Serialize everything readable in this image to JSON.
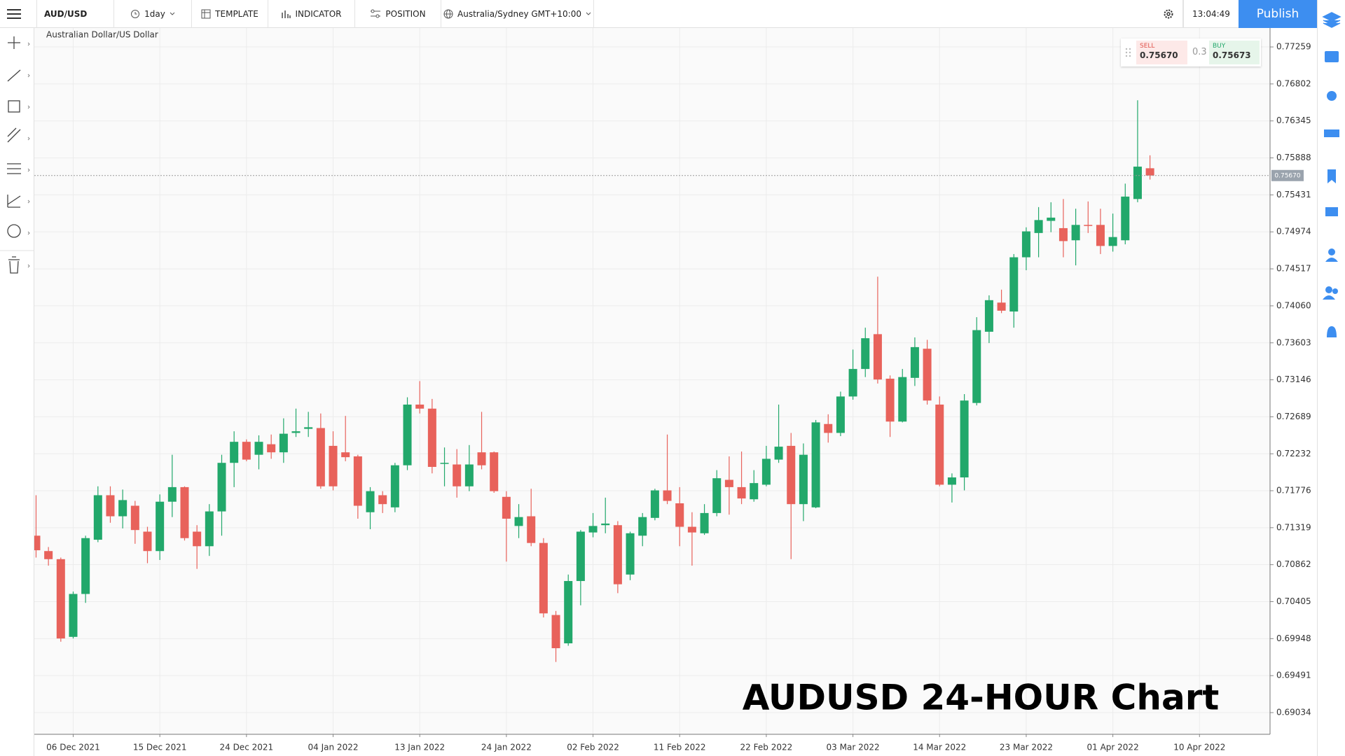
{
  "toolbar": {
    "symbol": "AUD/USD",
    "interval": "1day",
    "template": "TEMPLATE",
    "indicator": "INDICATOR",
    "position": "POSITION",
    "timezone": "Australia/Sydney GMT+10:00",
    "time": "13:04:49",
    "publish": "Publish"
  },
  "quote": {
    "sell_label": "SELL",
    "sell": "0.75670",
    "spread": "0.3",
    "buy_label": "BUY",
    "buy": "0.75673"
  },
  "chart_data": {
    "type": "candlestick",
    "subtitle": "Australian Dollar/US Dollar",
    "annotation": "AUDUSD 24-HOUR Chart",
    "open": [
      0.7122,
      0.7103,
      0.7093,
      0.6997,
      0.705,
      0.7117,
      0.7172,
      0.7146,
      0.7159,
      0.7127,
      0.7103,
      0.7164,
      0.7182,
      0.7127,
      0.7109,
      0.7152,
      0.7212,
      0.7238,
      0.7222,
      0.7235,
      0.7225,
      0.7249,
      0.7254,
      0.7255,
      0.7233,
      0.7225,
      0.722,
      0.7151,
      0.7172,
      0.7157,
      0.7209,
      0.7284,
      0.7279,
      0.7211,
      0.721,
      0.7183,
      0.7225,
      0.7225,
      0.717,
      0.7134,
      0.7146,
      0.7113,
      0.7024,
      0.6989,
      0.7066,
      0.7126,
      0.7135,
      0.7135,
      0.7074,
      0.7122,
      0.7144,
      0.7178,
      0.7162,
      0.7133,
      0.7125,
      0.715,
      0.7191,
      0.7182,
      0.7167,
      0.7185,
      0.7216,
      0.7233,
      0.7161,
      0.7157,
      0.726,
      0.7249,
      0.7294,
      0.7328,
      0.7371,
      0.7316,
      0.7263,
      0.7317,
      0.7353,
      0.7284,
      0.7185,
      0.7194,
      0.7286,
      0.7374,
      0.741,
      0.7399,
      0.7466,
      0.7496,
      0.7511,
      0.7502,
      0.7487,
      0.7506,
      0.7506,
      0.748,
      0.7487,
      0.7538,
      0.7576
    ],
    "high": [
      0.7172,
      0.7108,
      0.7095,
      0.7053,
      0.7122,
      0.7183,
      0.7183,
      0.7179,
      0.7165,
      0.7133,
      0.7173,
      0.7222,
      0.7183,
      0.7135,
      0.7161,
      0.7222,
      0.7251,
      0.7241,
      0.7246,
      0.7247,
      0.7267,
      0.7279,
      0.7275,
      0.7273,
      0.7251,
      0.727,
      0.7222,
      0.7182,
      0.7177,
      0.7212,
      0.7293,
      0.7313,
      0.7291,
      0.7231,
      0.7229,
      0.7234,
      0.7275,
      0.7226,
      0.7177,
      0.7161,
      0.718,
      0.7119,
      0.7029,
      0.7074,
      0.7129,
      0.715,
      0.7169,
      0.714,
      0.7127,
      0.715,
      0.718,
      0.7247,
      0.7182,
      0.7151,
      0.7161,
      0.7203,
      0.722,
      0.7226,
      0.7203,
      0.7233,
      0.7284,
      0.7249,
      0.7236,
      0.7265,
      0.7272,
      0.73,
      0.7352,
      0.7379,
      0.7442,
      0.732,
      0.7328,
      0.7367,
      0.7364,
      0.7294,
      0.7199,
      0.7297,
      0.7392,
      0.7419,
      0.7426,
      0.747,
      0.7503,
      0.7528,
      0.7534,
      0.7538,
      0.7526,
      0.7535,
      0.7526,
      0.752,
      0.7557,
      0.766,
      0.7592
    ],
    "low": [
      0.7095,
      0.7085,
      0.6991,
      0.6995,
      0.7039,
      0.7114,
      0.7138,
      0.7131,
      0.7112,
      0.7088,
      0.7092,
      0.7145,
      0.7116,
      0.7081,
      0.7097,
      0.7122,
      0.7182,
      0.7214,
      0.7204,
      0.7217,
      0.7212,
      0.7244,
      0.7244,
      0.718,
      0.7178,
      0.7214,
      0.7143,
      0.713,
      0.715,
      0.7151,
      0.7203,
      0.7273,
      0.7199,
      0.7183,
      0.7169,
      0.7177,
      0.7204,
      0.7175,
      0.709,
      0.7119,
      0.7109,
      0.7021,
      0.6966,
      0.6986,
      0.7036,
      0.712,
      0.7125,
      0.7051,
      0.7067,
      0.7109,
      0.7141,
      0.7161,
      0.7109,
      0.7085,
      0.7123,
      0.7146,
      0.7148,
      0.7161,
      0.7164,
      0.7183,
      0.7212,
      0.7093,
      0.714,
      0.7156,
      0.7237,
      0.7245,
      0.729,
      0.7318,
      0.731,
      0.7244,
      0.7262,
      0.7307,
      0.7284,
      0.7183,
      0.7163,
      0.7178,
      0.7283,
      0.736,
      0.7397,
      0.7379,
      0.745,
      0.7466,
      0.7497,
      0.7466,
      0.7456,
      0.7496,
      0.747,
      0.7473,
      0.7482,
      0.7534,
      0.7562
    ],
    "close": [
      0.7104,
      0.7093,
      0.6995,
      0.705,
      0.7119,
      0.7172,
      0.7146,
      0.7166,
      0.7129,
      0.7103,
      0.7164,
      0.7182,
      0.7119,
      0.7109,
      0.7152,
      0.7212,
      0.7238,
      0.7216,
      0.7238,
      0.7225,
      0.7248,
      0.7251,
      0.7256,
      0.7183,
      0.7183,
      0.7219,
      0.7159,
      0.7177,
      0.7161,
      0.7209,
      0.7284,
      0.7279,
      0.7207,
      0.7212,
      0.7183,
      0.721,
      0.7209,
      0.7177,
      0.7143,
      0.7145,
      0.7113,
      0.7026,
      0.6983,
      0.7066,
      0.7127,
      0.7134,
      0.7137,
      0.7062,
      0.7125,
      0.7145,
      0.7178,
      0.7165,
      0.7133,
      0.7126,
      0.715,
      0.7193,
      0.7182,
      0.7168,
      0.7187,
      0.7217,
      0.7232,
      0.7161,
      0.7222,
      0.7262,
      0.7249,
      0.7294,
      0.7328,
      0.7366,
      0.7315,
      0.7263,
      0.7318,
      0.7355,
      0.7289,
      0.7185,
      0.7194,
      0.7289,
      0.7376,
      0.7413,
      0.74,
      0.7466,
      0.7498,
      0.7512,
      0.7515,
      0.7486,
      0.7506,
      0.7505,
      0.748,
      0.7491,
      0.7541,
      0.7578,
      0.7567
    ],
    "colors": {
      "up": "#22a86b",
      "down": "#e8625b"
    },
    "xlim": [
      -0.14,
      99.7
    ],
    "xticks": [
      {
        "value": 3,
        "label": "06 Dec 2021"
      },
      {
        "value": 10,
        "label": "15 Dec 2021"
      },
      {
        "value": 17,
        "label": "24 Dec 2021"
      },
      {
        "value": 24,
        "label": "04 Jan 2022"
      },
      {
        "value": 31,
        "label": "13 Jan 2022"
      },
      {
        "value": 38,
        "label": "24 Jan 2022"
      },
      {
        "value": 45,
        "label": "02 Feb 2022"
      },
      {
        "value": 52,
        "label": "11 Feb 2022"
      },
      {
        "value": 59,
        "label": "22 Feb 2022"
      },
      {
        "value": 66,
        "label": "03 Mar 2022"
      },
      {
        "value": 73,
        "label": "14 Mar 2022"
      },
      {
        "value": 80,
        "label": "23 Mar 2022"
      },
      {
        "value": 87,
        "label": "01 Apr 2022"
      },
      {
        "value": 94,
        "label": "10 Apr 2022"
      }
    ],
    "ylim": [
      0.68766,
      0.77493
    ],
    "yticks": [
      0.77259,
      0.76802,
      0.76345,
      0.75888,
      0.75431,
      0.74974,
      0.74517,
      {
        "value": 0.7406,
        "label": "0.74060"
      },
      0.73603,
      0.73146,
      0.72689,
      0.72232,
      0.71776,
      0.71319,
      0.70862,
      0.70405,
      0.69948,
      0.69491,
      0.69034
    ],
    "grid": true,
    "price_line": {
      "value": 0.7567,
      "label": "0.75670"
    }
  }
}
